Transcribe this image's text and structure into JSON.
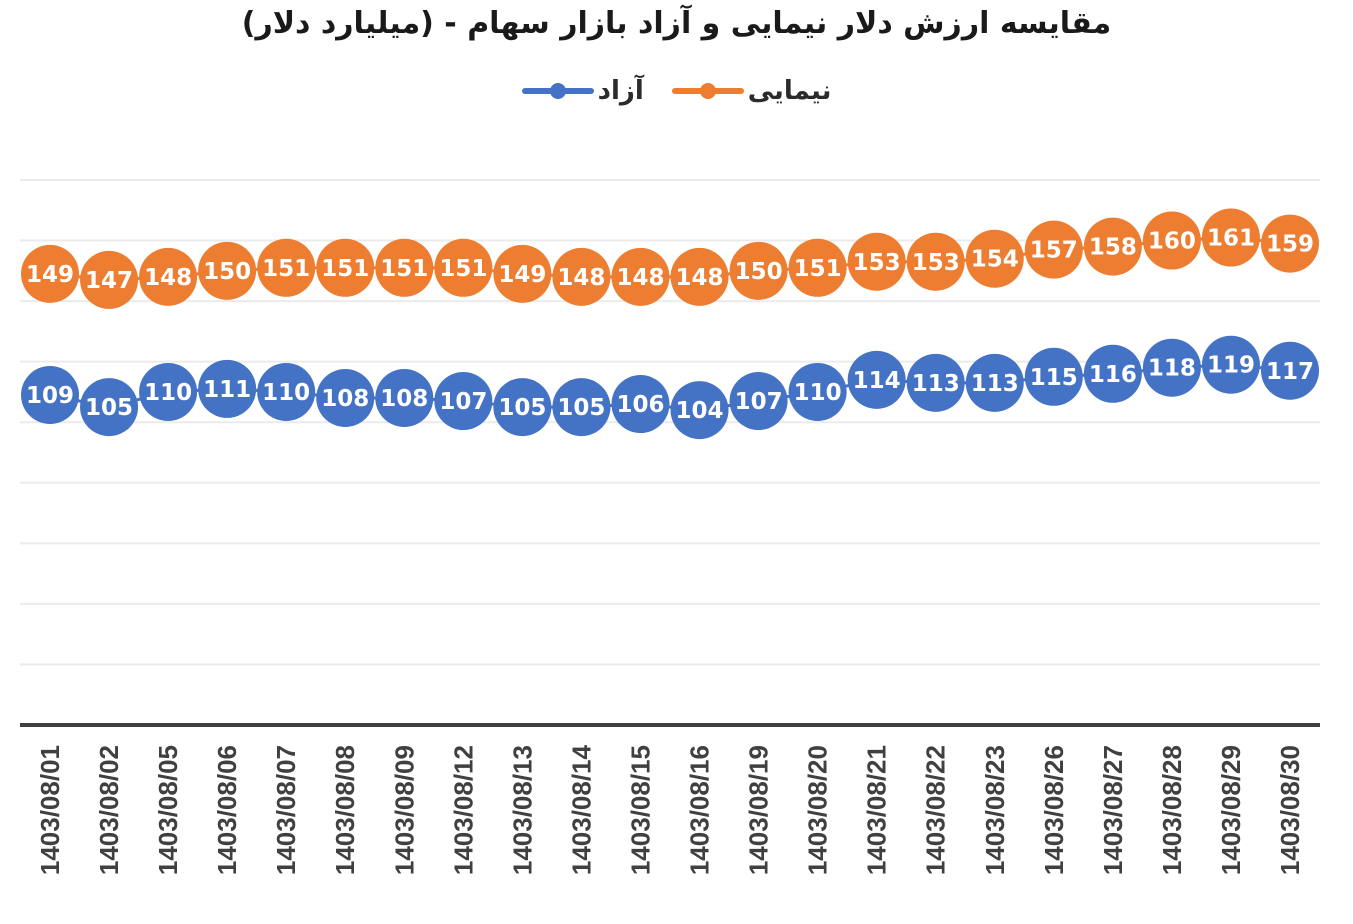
{
  "title": "مقایسه ارزش دلار نیمایی و آزاد بازار سهام - (میلیارد دلار)",
  "legend": [
    {
      "label": "نیمایی",
      "color": "#ED7D31"
    },
    {
      "label": "آزاد",
      "color": "#4472C4"
    }
  ],
  "chart_data": {
    "type": "line",
    "title": "مقایسه ارزش دلار نیمایی و آزاد بازار سهام - (میلیارد دلار)",
    "xlabel": "",
    "ylabel": "",
    "ylim": [
      0,
      180
    ],
    "ytick_step": 20,
    "y_axis_visible": false,
    "grid": true,
    "legend_position": "top",
    "categories": [
      "1403/08/01",
      "1403/08/02",
      "1403/08/05",
      "1403/08/06",
      "1403/08/07",
      "1403/08/08",
      "1403/08/09",
      "1403/08/12",
      "1403/08/13",
      "1403/08/14",
      "1403/08/15",
      "1403/08/16",
      "1403/08/19",
      "1403/08/20",
      "1403/08/21",
      "1403/08/22",
      "1403/08/23",
      "1403/08/26",
      "1403/08/27",
      "1403/08/28",
      "1403/08/29",
      "1403/08/30"
    ],
    "series": [
      {
        "name": "نیمایی",
        "color": "#ED7D31",
        "values": [
          149,
          147,
          148,
          150,
          151,
          151,
          151,
          151,
          149,
          148,
          148,
          148,
          150,
          151,
          153,
          153,
          154,
          157,
          158,
          160,
          161,
          159
        ]
      },
      {
        "name": "آزاد",
        "color": "#4472C4",
        "values": [
          109,
          105,
          110,
          111,
          110,
          108,
          108,
          107,
          105,
          105,
          106,
          104,
          107,
          110,
          114,
          113,
          113,
          115,
          116,
          118,
          119,
          117
        ]
      }
    ]
  }
}
